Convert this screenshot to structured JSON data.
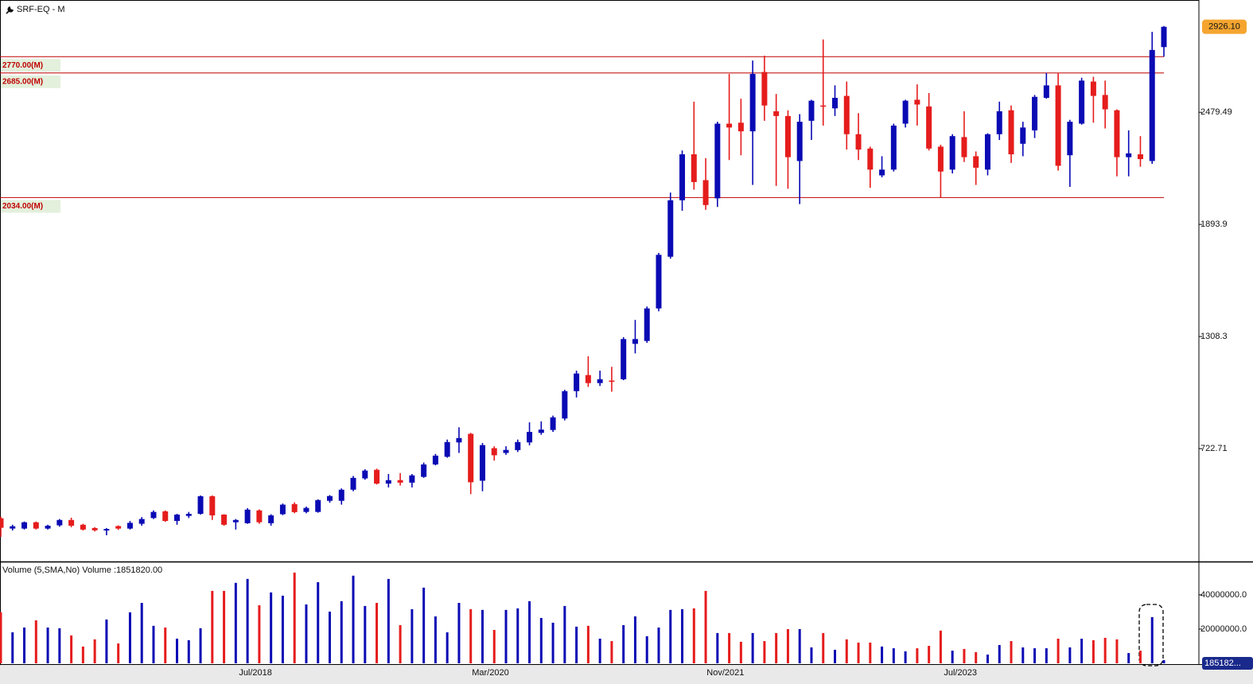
{
  "chart_data": {
    "type": "candlestick",
    "title": "SRF-EQ - M",
    "categories": [
      null,
      null,
      null,
      null,
      null,
      null,
      null,
      null,
      null,
      null,
      null,
      null,
      null,
      null,
      null,
      null,
      null,
      null,
      null,
      null,
      null,
      "Jul/2018",
      null,
      null,
      null,
      null,
      null,
      null,
      null,
      null,
      null,
      null,
      null,
      null,
      null,
      null,
      null,
      null,
      null,
      null,
      null,
      "Mar/2020",
      null,
      null,
      null,
      null,
      null,
      null,
      null,
      null,
      null,
      null,
      null,
      null,
      null,
      null,
      null,
      null,
      null,
      null,
      null,
      "Nov/2021",
      null,
      null,
      null,
      null,
      null,
      null,
      null,
      null,
      null,
      null,
      null,
      null,
      null,
      null,
      null,
      null,
      null,
      null,
      null,
      "Jul/2023",
      null,
      null,
      null,
      null,
      null,
      null,
      null,
      null,
      null,
      null,
      null,
      null,
      null,
      null,
      null,
      null,
      null,
      null
    ],
    "open": [
      359,
      305,
      305,
      338,
      305,
      322,
      350,
      325,
      308,
      295,
      318,
      305,
      330,
      360,
      395,
      345,
      371,
      382,
      474,
      378,
      338,
      333,
      400,
      333,
      380,
      433,
      392,
      392,
      450,
      450,
      508,
      567,
      612,
      540,
      558,
      545,
      575,
      640,
      680,
      755,
      800,
      555,
      725,
      700,
      715,
      755,
      805,
      820,
      880,
      1023,
      1107,
      1065,
      1078,
      1085,
      1270,
      1285,
      1455,
      1725,
      2020,
      2260,
      2125,
      2030,
      2420,
      2425,
      2380,
      2690,
      2485,
      2460,
      2225,
      2435,
      2515,
      2500,
      2565,
      2365,
      2290,
      2150,
      2180,
      2420,
      2545,
      2510,
      2300,
      2180,
      2350,
      2250,
      2180,
      2365,
      2490,
      2315,
      2385,
      2555,
      2620,
      2255,
      2420,
      2640,
      2570,
      2490,
      2245,
      2260,
      2225,
      2820
    ],
    "high": [
      367,
      325,
      342,
      342,
      325,
      355,
      362,
      330,
      312,
      308,
      322,
      345,
      365,
      400,
      400,
      382,
      392,
      478,
      478,
      380,
      355,
      412,
      405,
      380,
      436,
      442,
      420,
      458,
      480,
      515,
      580,
      615,
      618,
      590,
      595,
      590,
      650,
      695,
      770,
      834,
      805,
      752,
      735,
      735,
      770,
      860,
      865,
      895,
      1030,
      1130,
      1205,
      1130,
      1150,
      1305,
      1395,
      1465,
      1745,
      2060,
      2280,
      2535,
      2240,
      2430,
      2680,
      2550,
      2750,
      2775,
      2575,
      2490,
      2470,
      2545,
      2860,
      2620,
      2640,
      2475,
      2300,
      2250,
      2420,
      2545,
      2625,
      2580,
      2310,
      2365,
      2485,
      2275,
      2370,
      2535,
      2515,
      2430,
      2570,
      2685,
      2685,
      2440,
      2660,
      2665,
      2645,
      2495,
      2385,
      2355,
      2900,
      2930
    ],
    "low": [
      262,
      295,
      300,
      300,
      300,
      315,
      312,
      295,
      290,
      270,
      298,
      300,
      320,
      355,
      340,
      325,
      360,
      378,
      350,
      320,
      300,
      330,
      330,
      320,
      375,
      385,
      385,
      388,
      440,
      430,
      500,
      560,
      535,
      520,
      530,
      520,
      570,
      635,
      675,
      700,
      485,
      500,
      660,
      690,
      705,
      740,
      795,
      810,
      870,
      990,
      1045,
      1050,
      1020,
      1080,
      1220,
      1275,
      1440,
      1715,
      1965,
      2075,
      1970,
      1985,
      2230,
      2255,
      2100,
      2435,
      2095,
      2080,
      2000,
      2335,
      2410,
      2460,
      2285,
      2230,
      2085,
      2140,
      2170,
      2400,
      2410,
      2280,
      2035,
      2160,
      2220,
      2100,
      2150,
      2335,
      2215,
      2250,
      2345,
      2550,
      2175,
      2090,
      2415,
      2425,
      2395,
      2145,
      2145,
      2195,
      2210,
      2770
    ],
    "close": [
      309,
      317,
      338,
      305,
      320,
      350,
      320,
      300,
      296,
      303,
      305,
      335,
      355,
      392,
      345,
      378,
      382,
      474,
      374,
      325,
      350,
      404,
      338,
      374,
      430,
      391,
      413,
      454,
      475,
      508,
      570,
      608,
      540,
      558,
      545,
      583,
      640,
      686,
      757,
      778,
      547,
      741,
      688,
      716,
      757,
      810,
      822,
      886,
      1023,
      1115,
      1065,
      1085,
      1073,
      1295,
      1295,
      1455,
      1735,
      2020,
      2260,
      2115,
      1995,
      2420,
      2400,
      2380,
      2680,
      2515,
      2460,
      2245,
      2430,
      2540,
      2510,
      2555,
      2365,
      2285,
      2180,
      2180,
      2410,
      2540,
      2520,
      2290,
      2170,
      2355,
      2245,
      2190,
      2365,
      2485,
      2260,
      2400,
      2560,
      2620,
      2200,
      2430,
      2645,
      2565,
      2495,
      2245,
      2265,
      2235,
      2805,
      2926.1
    ],
    "volume": [
      29800000,
      18100000,
      20900000,
      25100000,
      20900000,
      20500000,
      16300000,
      9800000,
      14000000,
      25600000,
      11600000,
      29800000,
      35300000,
      21900000,
      20900000,
      14400000,
      13500000,
      20500000,
      42300000,
      42300000,
      47000000,
      49300000,
      33900000,
      41400000,
      39500000,
      53000000,
      34400000,
      47400000,
      30200000,
      36300000,
      51200000,
      33500000,
      35300000,
      49300000,
      22300000,
      31600000,
      44200000,
      27400000,
      18100000,
      35300000,
      31600000,
      31200000,
      19500000,
      31200000,
      32100000,
      36300000,
      26500000,
      23700000,
      33500000,
      21400000,
      21900000,
      14400000,
      13000000,
      22300000,
      27400000,
      15800000,
      20900000,
      31200000,
      31600000,
      32100000,
      42300000,
      17700000,
      17700000,
      12600000,
      17700000,
      13000000,
      17700000,
      20000000,
      20000000,
      9300000,
      17700000,
      7900000,
      14000000,
      12100000,
      12100000,
      9800000,
      8800000,
      7000000,
      8800000,
      10200000,
      19100000,
      7400000,
      8400000,
      6500000,
      5100000,
      10700000,
      13000000,
      9300000,
      8800000,
      8800000,
      14400000,
      9300000,
      14400000,
      13500000,
      14900000,
      14000000,
      6000000,
      7400000,
      27000000,
      1851820
    ],
    "up_color": "#0a0ab4",
    "down_color": "#e51c1c",
    "level_color": "#c00000",
    "ylim": [
      133,
      3066
    ],
    "yticks": [
      722.71,
      1308.3,
      1893.9,
      2479.49
    ],
    "levels": [
      {
        "value": 2770,
        "label": "2770.00(M)"
      },
      {
        "value": 2685,
        "label": "2685.00(M)"
      },
      {
        "value": 2034,
        "label": "2034.00(M)"
      }
    ],
    "last_price": {
      "value": 2926.1,
      "label": "2926.10"
    },
    "volume_title": "Volume (5,SMA,No) Volume :1851820.00",
    "volume_ylim": [
      0,
      59000000
    ],
    "volume_yticks": [
      {
        "value": 20000000,
        "label": "20000000.0"
      },
      {
        "value": 40000000,
        "label": "40000000.0"
      }
    ],
    "volume_last_label": "185182..."
  }
}
